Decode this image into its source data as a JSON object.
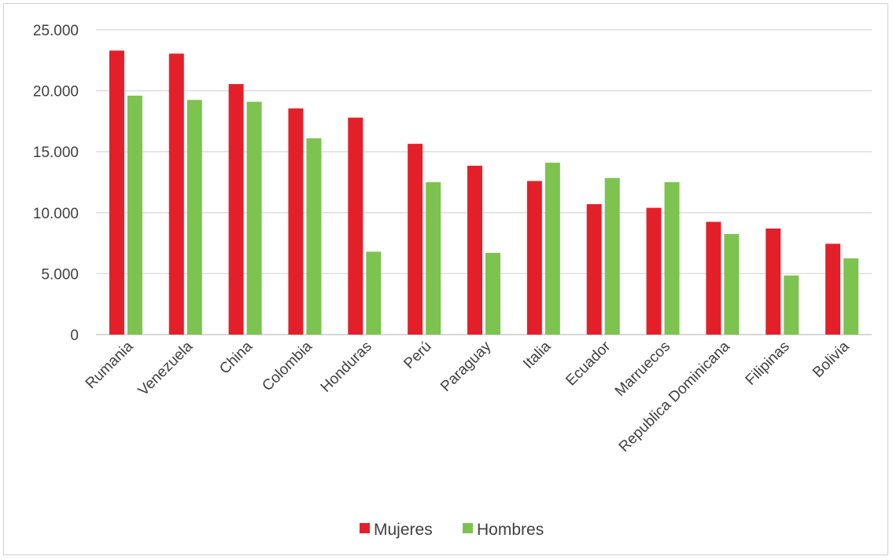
{
  "chart_data": {
    "type": "bar",
    "title": "",
    "xlabel": "",
    "ylabel": "",
    "categories": [
      "Rumania",
      "Venezuela",
      "China",
      "Colombia",
      "Honduras",
      "Perú",
      "Paraguay",
      "Italia",
      "Ecuador",
      "Marruecos",
      "Republica Dominicana",
      "Filipinas",
      "Bolivia"
    ],
    "series": [
      {
        "name": "Mujeres",
        "color": "#e3202a",
        "values": [
          23300,
          23050,
          20550,
          18550,
          17800,
          15650,
          13850,
          12600,
          10700,
          10400,
          9250,
          8700,
          7450
        ]
      },
      {
        "name": "Hombres",
        "color": "#7cc350",
        "values": [
          19600,
          19250,
          19100,
          16100,
          6800,
          12500,
          6700,
          14100,
          12850,
          12500,
          8250,
          4850,
          6250
        ]
      }
    ],
    "ylim": [
      0,
      25000
    ],
    "yticks": [
      0,
      5000,
      10000,
      15000,
      20000,
      25000
    ],
    "ytick_labels": [
      "0",
      "5.000",
      "10.000",
      "15.000",
      "20.000",
      "25.000"
    ],
    "grid": true,
    "legend_position": "bottom-center",
    "gridline_color": "#d9d9d9",
    "axis_color": "#bfbfbf"
  }
}
